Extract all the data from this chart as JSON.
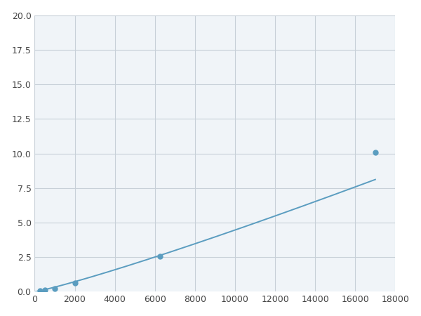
{
  "x": [
    0,
    250,
    500,
    1000,
    2000,
    6250,
    17000
  ],
  "y": [
    0.0,
    0.1,
    0.15,
    0.22,
    0.65,
    2.55,
    10.1
  ],
  "line_color": "#5b9dc0",
  "marker_x": [
    250,
    500,
    1000,
    2000,
    6250,
    17000
  ],
  "marker_y": [
    0.1,
    0.15,
    0.22,
    0.65,
    2.55,
    10.1
  ],
  "marker_color": "#5b9dc0",
  "marker_size": 5,
  "line_width": 1.4,
  "xlim": [
    0,
    18000
  ],
  "ylim": [
    0,
    20
  ],
  "xticks": [
    0,
    2000,
    4000,
    6000,
    8000,
    10000,
    12000,
    14000,
    16000,
    18000
  ],
  "yticks": [
    0.0,
    2.5,
    5.0,
    7.5,
    10.0,
    12.5,
    15.0,
    17.5,
    20.0
  ],
  "grid_color": "#c8d0d8",
  "bg_color": "#f0f4f8",
  "fig_bg_color": "#ffffff"
}
